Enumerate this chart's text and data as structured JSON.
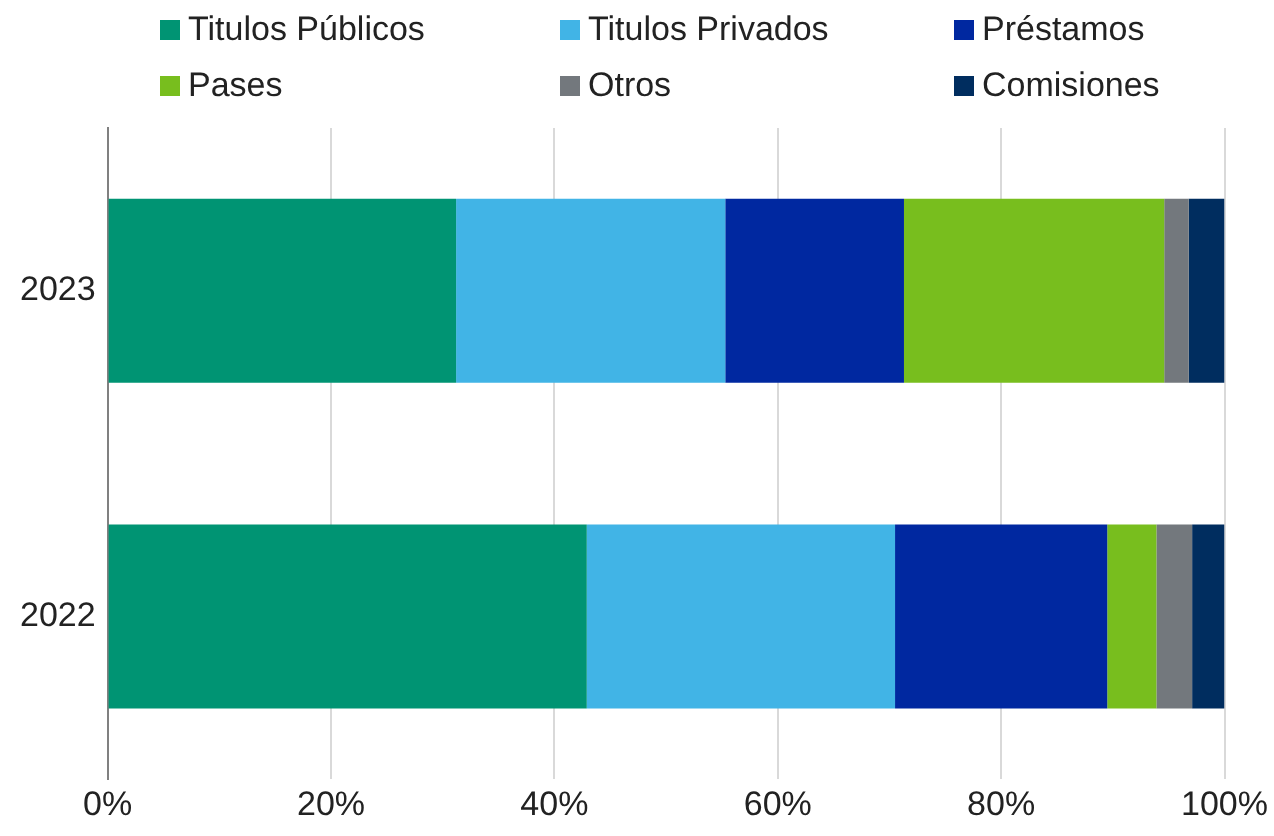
{
  "chart_data": {
    "type": "bar",
    "orientation": "horizontal",
    "stacked": true,
    "categories": [
      "2023",
      "2022"
    ],
    "series": [
      {
        "name": "Titulos Públicos",
        "color": "#009473",
        "values": [
          31.2,
          42.9
        ]
      },
      {
        "name": "Titulos Privados",
        "color": "#41b4e6",
        "values": [
          24.1,
          27.6
        ]
      },
      {
        "name": "Préstamos",
        "color": "#0028a0",
        "values": [
          16.0,
          19.0
        ]
      },
      {
        "name": "Pases",
        "color": "#78be1e",
        "values": [
          23.3,
          4.4
        ]
      },
      {
        "name": "Otros",
        "color": "#73787d",
        "values": [
          2.2,
          3.2
        ]
      },
      {
        "name": "Comisiones",
        "color": "#002d5f",
        "values": [
          3.2,
          2.9
        ]
      }
    ],
    "xlim": [
      0,
      100
    ],
    "xticks": [
      {
        "value": 0,
        "label": "0%"
      },
      {
        "value": 20,
        "label": "20%"
      },
      {
        "value": 40,
        "label": "40%"
      },
      {
        "value": 60,
        "label": "60%"
      },
      {
        "value": 80,
        "label": "80%"
      },
      {
        "value": 100,
        "label": "100%"
      }
    ],
    "grid": "x",
    "legend": "top"
  }
}
